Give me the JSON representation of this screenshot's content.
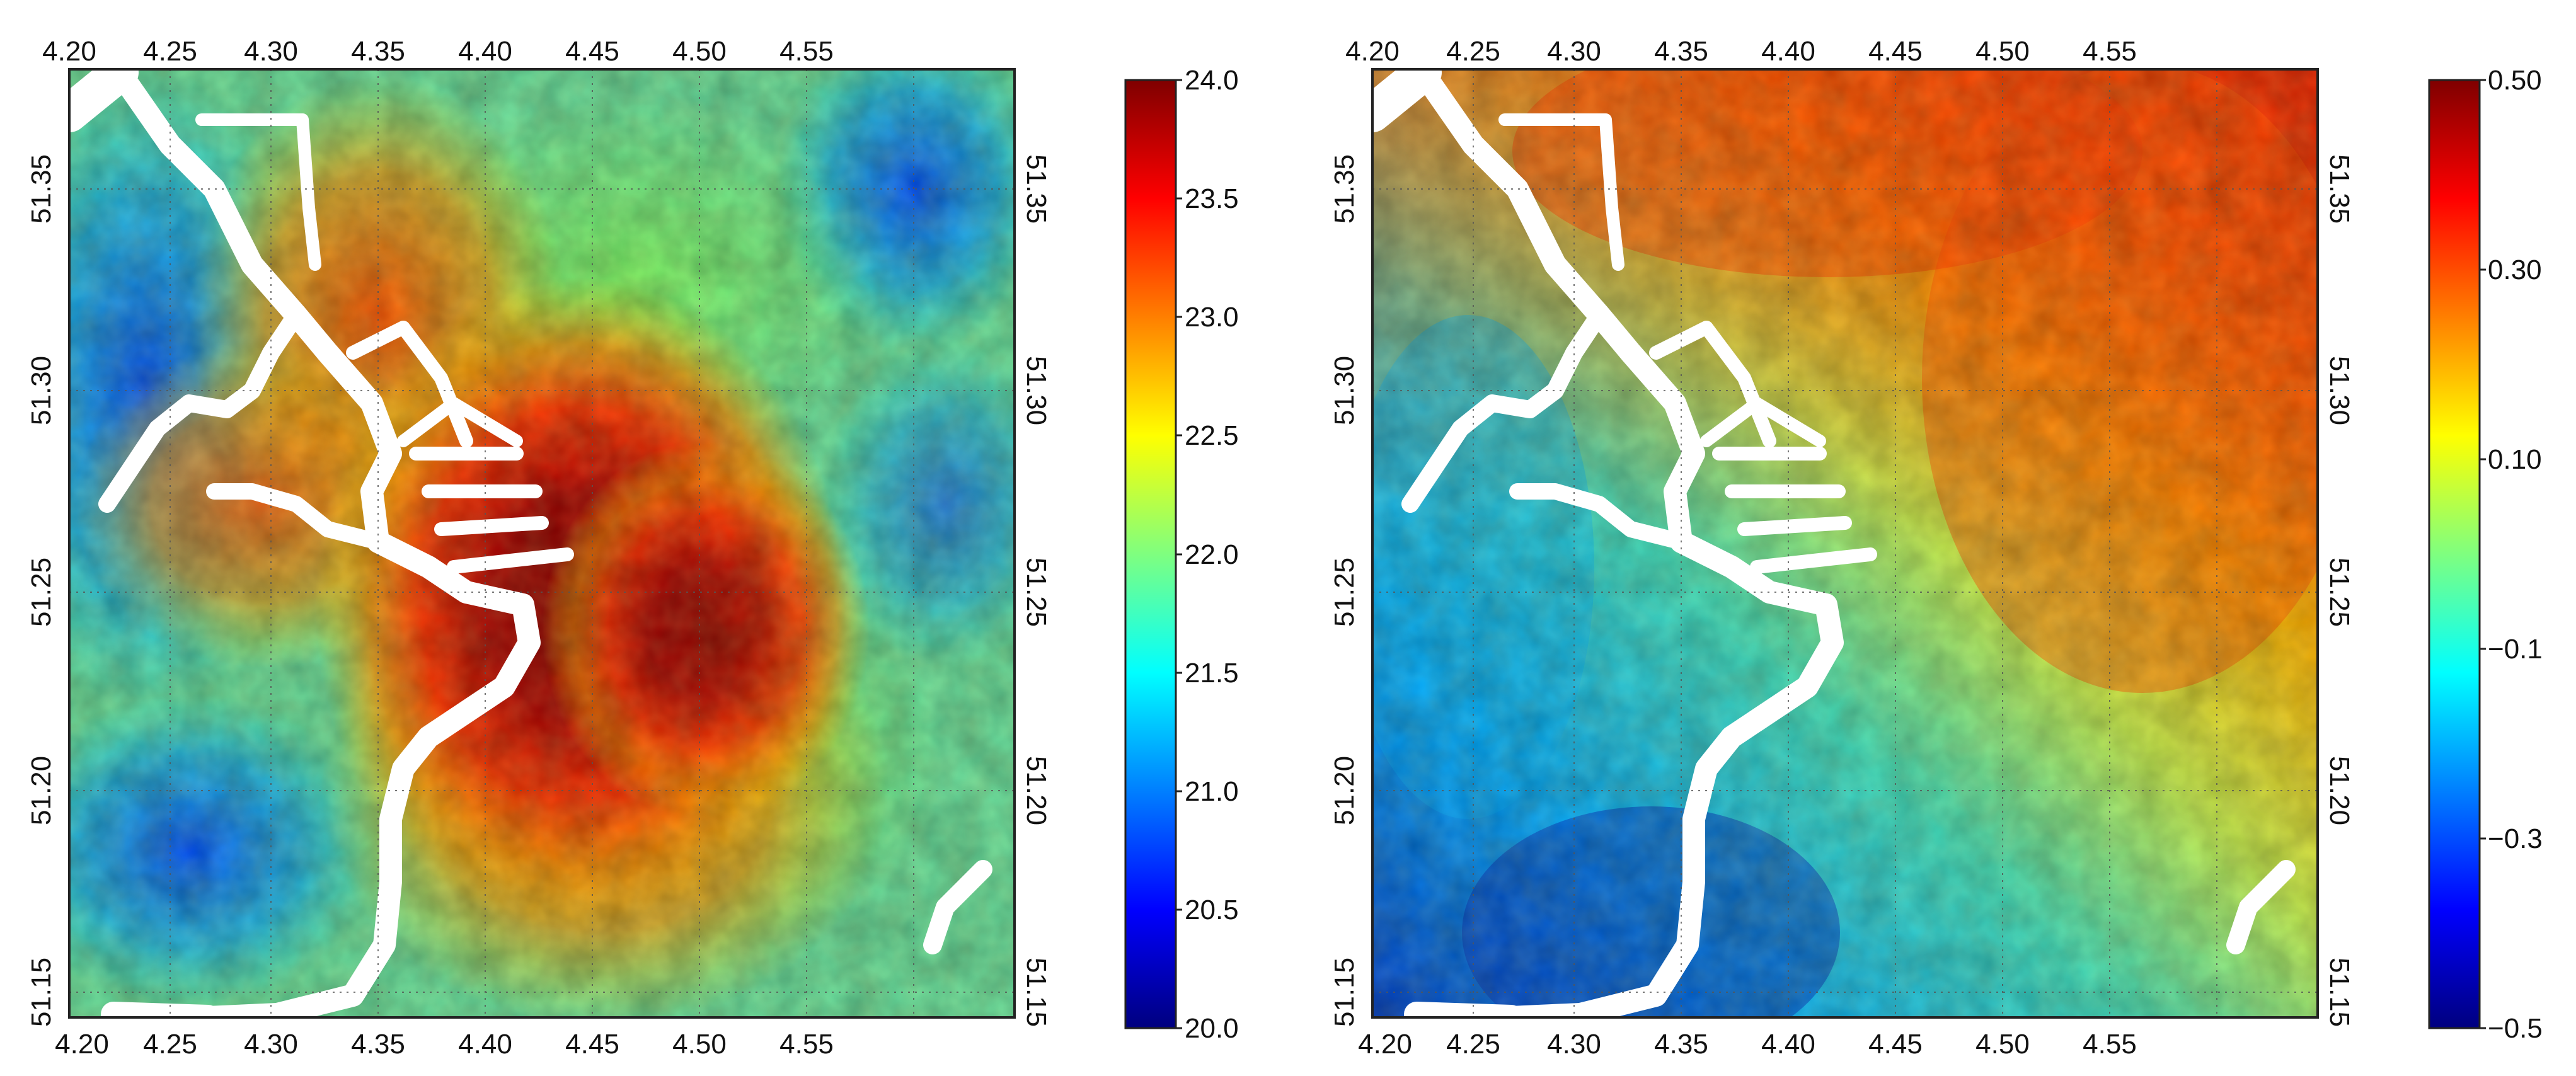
{
  "panels": [
    {
      "id": "temperature-map",
      "x_ticks": [
        "4.20",
        "4.25",
        "4.30",
        "4.35",
        "4.40",
        "4.45",
        "4.50",
        "4.55"
      ],
      "y_ticks_left": [
        "51.35",
        "51.30",
        "51.25",
        "51.20",
        "51.15"
      ],
      "y_ticks_right": [
        "51.35",
        "51.30",
        "51.25",
        "51.20",
        "51.15"
      ],
      "colorbar": {
        "labels": [
          "24.0",
          "23.5",
          "23.0",
          "22.5",
          "22.0",
          "21.5",
          "21.0",
          "20.5",
          "20.0"
        ],
        "range": [
          20.0,
          24.0
        ]
      },
      "colormap": [
        "#00007f",
        "#0000ff",
        "#007fff",
        "#00ffff",
        "#7fff7f",
        "#ffff00",
        "#ff7f00",
        "#ff0000",
        "#7f0000"
      ]
    },
    {
      "id": "difference-map",
      "x_ticks": [
        "4.20",
        "4.25",
        "4.30",
        "4.35",
        "4.40",
        "4.45",
        "4.50",
        "4.55"
      ],
      "y_ticks_left": [
        "51.35",
        "51.30",
        "51.25",
        "51.20",
        "51.15"
      ],
      "y_ticks_right": [
        "51.35",
        "51.30",
        "51.25",
        "51.20",
        "51.15"
      ],
      "colorbar": {
        "labels": [
          "0.50",
          "0.30",
          "0.10",
          "−0.1",
          "−0.3",
          "−0.5"
        ],
        "range": [
          -0.5,
          0.5
        ]
      },
      "colormap": [
        "#00007f",
        "#0000ff",
        "#007fff",
        "#00ffff",
        "#7fff7f",
        "#ffff00",
        "#ff7f00",
        "#ff0000",
        "#7f0000"
      ]
    }
  ],
  "axes": {
    "lon_range": [
      4.19,
      4.63
    ],
    "lat_range": [
      51.11,
      51.385
    ],
    "grid": "dotted"
  }
}
